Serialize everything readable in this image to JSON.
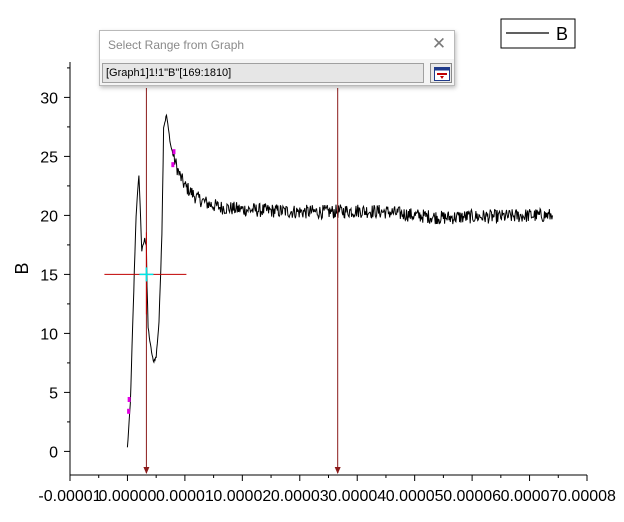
{
  "dialog": {
    "title": "Select Range from Graph",
    "range_value": "[Graph1]1!1\"B\"[169:1810]",
    "icons": {
      "close": "close-icon",
      "range": "range-select-icon"
    }
  },
  "chart_data": {
    "type": "line",
    "title": "",
    "xlabel": "",
    "ylabel": "B",
    "xlim": [
      -1e-05,
      8e-05
    ],
    "ylim": [
      -2,
      33
    ],
    "x_tick_labels": [
      "-0.00001",
      "0.00000",
      "0.00001",
      "0.00002",
      "0.00003",
      "0.00004",
      "0.00005",
      "0.00006",
      "0.00007",
      "0.00008"
    ],
    "y_tick_labels": [
      "0",
      "5",
      "10",
      "15",
      "20",
      "25",
      "30"
    ],
    "legend": {
      "entries": [
        "B"
      ],
      "position": "top-right"
    },
    "grid": false,
    "series": [
      {
        "name": "B",
        "color": "#000000",
        "x": [
          0.0,
          5e-07,
          1e-06,
          1.5e-06,
          2e-06,
          2.5e-06,
          3e-06,
          3.3e-06,
          3.4e-06,
          3.6e-06,
          4e-06,
          4.5e-06,
          5e-06,
          5.5e-06,
          6e-06,
          6.3e-06,
          6.8e-06,
          7.5e-06,
          8e-06,
          9e-06,
          1e-05,
          1.2e-05,
          1.4e-05,
          1.6e-05,
          1.8e-05,
          2e-05,
          2.5e-05,
          3e-05,
          3.5e-05,
          4e-05,
          4.5e-05,
          5e-05,
          5.5e-05,
          6e-05,
          6.5e-05,
          7e-05,
          7.4e-05
        ],
        "y": [
          0.3,
          4,
          12,
          20,
          23.5,
          17,
          18,
          17.5,
          14,
          10.5,
          9,
          7.6,
          8,
          11,
          18.5,
          27.5,
          28.5,
          26,
          25,
          23.5,
          22.5,
          21.5,
          21,
          20.7,
          20.6,
          20.5,
          20.4,
          20.3,
          20.3,
          20.4,
          20.3,
          20.0,
          19.8,
          19.9,
          19.9,
          20.0,
          20.0
        ],
        "noise_amplitude": 0.6
      }
    ],
    "selection": {
      "markers_x": [
        3.3e-06,
        3.66e-05
      ],
      "marker_color": "#8b1a1a",
      "crosshair": {
        "x": 3.3e-06,
        "y": 15,
        "color": "#c00000",
        "center_color": "#00e5e5"
      },
      "highlight_points": [
        {
          "x": 2e-07,
          "y": 3.4
        },
        {
          "x": 3e-07,
          "y": 4.4
        },
        {
          "x": 7.9e-06,
          "y": 24.3
        },
        {
          "x": 8.1e-06,
          "y": 25.4
        }
      ],
      "highlight_color": "#e000e0"
    }
  }
}
